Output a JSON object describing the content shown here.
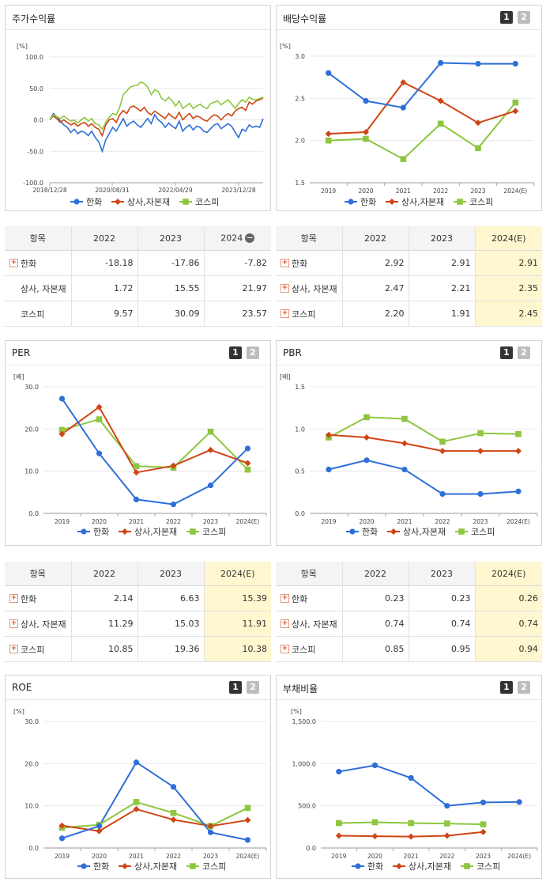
{
  "colors": {
    "hanwha": "#2e6fd8",
    "sangsa": "#cf4514",
    "kospi": "#8dc63f"
  },
  "legend": {
    "s1": "한화",
    "s2": "상사,자본재",
    "s3": "코스피"
  },
  "toggles": {
    "one": "1",
    "two": "2"
  },
  "chart_data": [
    {
      "id": "stock",
      "type": "line",
      "title": "주가수익률",
      "ylabel": "[%]",
      "ylim": [
        -100,
        100
      ],
      "yticks": [
        "100.0",
        "50.0",
        "0.0",
        "-50.0",
        "-100.0"
      ],
      "xticks": [
        "2018/12/28",
        "2020/08/31",
        "2022/04/29",
        "2023/12/28"
      ],
      "x": [
        0,
        1,
        2,
        3,
        4,
        5,
        6,
        7,
        8,
        9,
        10,
        11,
        12,
        13,
        14,
        15,
        16,
        17,
        18,
        19,
        20,
        21,
        22,
        23,
        24,
        25,
        26,
        27,
        28,
        29,
        30,
        31,
        32,
        33,
        34,
        35,
        36,
        37,
        38,
        39,
        40,
        41,
        42,
        43,
        44,
        45,
        46,
        47,
        48,
        49,
        50,
        51,
        52,
        53,
        54,
        55,
        56,
        57,
        58,
        59,
        60,
        61
      ],
      "series": [
        {
          "name": "한화",
          "key": "hanwha",
          "values": [
            0,
            10,
            5,
            -2,
            -8,
            -12,
            -20,
            -15,
            -22,
            -18,
            -20,
            -25,
            -18,
            -28,
            -35,
            -50,
            -32,
            -22,
            -12,
            -18,
            -8,
            2,
            -10,
            -5,
            -2,
            -8,
            -12,
            -5,
            2,
            -6,
            8,
            0,
            -4,
            -12,
            -5,
            -10,
            -14,
            -2,
            -18,
            -12,
            -8,
            -16,
            -10,
            -12,
            -18,
            -20,
            -14,
            -8,
            -6,
            -14,
            -10,
            -6,
            -10,
            -20,
            -28,
            -15,
            -18,
            -8,
            -12,
            -10,
            -12,
            2
          ]
        },
        {
          "name": "상사,자본재",
          "key": "sangsa",
          "values": [
            0,
            6,
            2,
            -4,
            0,
            -4,
            -8,
            -5,
            -10,
            -6,
            -4,
            -10,
            -6,
            -12,
            -15,
            -25,
            -8,
            0,
            2,
            -4,
            8,
            15,
            10,
            20,
            22,
            18,
            14,
            20,
            12,
            8,
            14,
            10,
            6,
            2,
            10,
            5,
            2,
            12,
            0,
            6,
            10,
            2,
            6,
            4,
            0,
            -2,
            4,
            8,
            6,
            0,
            6,
            10,
            6,
            14,
            18,
            20,
            15,
            28,
            25,
            30,
            32,
            35
          ]
        },
        {
          "name": "코스피",
          "key": "kospi",
          "values": [
            0,
            8,
            5,
            2,
            6,
            2,
            -2,
            0,
            -5,
            0,
            4,
            -2,
            2,
            -6,
            -8,
            -15,
            -4,
            4,
            10,
            8,
            20,
            40,
            46,
            52,
            54,
            55,
            60,
            58,
            52,
            40,
            48,
            45,
            34,
            30,
            36,
            30,
            22,
            30,
            18,
            22,
            26,
            18,
            22,
            25,
            20,
            18,
            26,
            28,
            30,
            24,
            28,
            32,
            25,
            18,
            26,
            32,
            28,
            36,
            33,
            32,
            34,
            36
          ]
        }
      ]
    },
    {
      "id": "dividend",
      "type": "line",
      "title": "배당수익률",
      "ylabel": "[%]",
      "ylim": [
        1.5,
        3.0
      ],
      "yticks": [
        "3.0",
        "2.5",
        "2.0",
        "1.5"
      ],
      "categories": [
        "2019",
        "2020",
        "2021",
        "2022",
        "2023",
        "2024(E)"
      ],
      "series": [
        {
          "name": "한화",
          "key": "hanwha",
          "values": [
            2.8,
            2.47,
            2.39,
            2.92,
            2.91,
            2.91
          ]
        },
        {
          "name": "상사,자본재",
          "key": "sangsa",
          "values": [
            2.08,
            2.1,
            2.69,
            2.47,
            2.21,
            2.35
          ]
        },
        {
          "name": "코스피",
          "key": "kospi",
          "values": [
            2.0,
            2.02,
            1.78,
            2.2,
            1.91,
            2.45
          ]
        }
      ]
    },
    {
      "id": "per",
      "type": "line",
      "title": "PER",
      "ylabel": "[배]",
      "ylim": [
        0,
        30
      ],
      "yticks": [
        "30.0",
        "20.0",
        "10.0",
        "0.0"
      ],
      "categories": [
        "2019",
        "2020",
        "2021",
        "2022",
        "2023",
        "2024(E)"
      ],
      "series": [
        {
          "name": "한화",
          "key": "hanwha",
          "values": [
            27.2,
            14.2,
            3.3,
            2.14,
            6.63,
            15.39
          ]
        },
        {
          "name": "상사,자본재",
          "key": "sangsa",
          "values": [
            18.8,
            25.2,
            9.7,
            11.29,
            15.03,
            11.91
          ]
        },
        {
          "name": "코스피",
          "key": "kospi",
          "values": [
            19.8,
            22.3,
            11.2,
            10.85,
            19.36,
            10.38
          ]
        }
      ]
    },
    {
      "id": "pbr",
      "type": "line",
      "title": "PBR",
      "ylabel": "[배]",
      "ylim": [
        0,
        1.5
      ],
      "yticks": [
        "1.5",
        "1.0",
        "0.5",
        "0.0"
      ],
      "categories": [
        "2019",
        "2020",
        "2021",
        "2022",
        "2023",
        "2024(E)"
      ],
      "series": [
        {
          "name": "한화",
          "key": "hanwha",
          "values": [
            0.52,
            0.63,
            0.52,
            0.23,
            0.23,
            0.26
          ]
        },
        {
          "name": "상사,자본재",
          "key": "sangsa",
          "values": [
            0.93,
            0.9,
            0.83,
            0.74,
            0.74,
            0.74
          ]
        },
        {
          "name": "코스피",
          "key": "kospi",
          "values": [
            0.9,
            1.14,
            1.12,
            0.85,
            0.95,
            0.94
          ]
        }
      ]
    },
    {
      "id": "roe",
      "type": "line",
      "title": "ROE",
      "ylabel": "[%]",
      "ylim": [
        0,
        30
      ],
      "yticks": [
        "30.0",
        "20.0",
        "10.0",
        "0.0"
      ],
      "categories": [
        "2019",
        "2020",
        "2021",
        "2022",
        "2023",
        "2024(E)"
      ],
      "series": [
        {
          "name": "한화",
          "key": "hanwha",
          "values": [
            2.3,
            5.2,
            20.3,
            14.5,
            3.7,
            1.9
          ]
        },
        {
          "name": "상사,자본재",
          "key": "sangsa",
          "values": [
            5.3,
            4.0,
            9.2,
            6.7,
            5.2,
            6.6
          ]
        },
        {
          "name": "코스피",
          "key": "kospi",
          "values": [
            4.8,
            5.5,
            10.9,
            8.3,
            5.2,
            9.5
          ]
        }
      ]
    },
    {
      "id": "debt",
      "type": "line",
      "title": "부채비율",
      "ylabel": "[%]",
      "ylim": [
        0,
        1500
      ],
      "yticks": [
        "1,500.0",
        "1,000.0",
        "500.0",
        "0.0"
      ],
      "categories": [
        "2019",
        "2020",
        "2021",
        "2022",
        "2023",
        "2024(E)"
      ],
      "series": [
        {
          "name": "한화",
          "key": "hanwha",
          "values": [
            905,
            980,
            830,
            500,
            540,
            545
          ]
        },
        {
          "name": "상사,자본재",
          "key": "sangsa",
          "values": [
            145,
            140,
            135,
            145,
            190,
            null
          ]
        },
        {
          "name": "코스피",
          "key": "kospi",
          "values": [
            295,
            305,
            295,
            290,
            280,
            null
          ]
        }
      ]
    }
  ],
  "tables": {
    "stock": {
      "header": [
        "항목",
        "2022",
        "2023",
        "2024"
      ],
      "rows": [
        [
          "한화",
          "-18.18",
          "-17.86",
          "-7.82"
        ],
        [
          "상사, 자본재",
          "1.72",
          "15.55",
          "21.97"
        ],
        [
          "코스피",
          "9.57",
          "30.09",
          "23.57"
        ]
      ]
    },
    "dividend": {
      "header": [
        "항목",
        "2022",
        "2023",
        "2024(E)"
      ],
      "rows": [
        [
          "한화",
          "2.92",
          "2.91",
          "2.91"
        ],
        [
          "상사, 자본재",
          "2.47",
          "2.21",
          "2.35"
        ],
        [
          "코스피",
          "2.20",
          "1.91",
          "2.45"
        ]
      ]
    },
    "per": {
      "header": [
        "항목",
        "2022",
        "2023",
        "2024(E)"
      ],
      "rows": [
        [
          "한화",
          "2.14",
          "6.63",
          "15.39"
        ],
        [
          "상사, 자본재",
          "11.29",
          "15.03",
          "11.91"
        ],
        [
          "코스피",
          "10.85",
          "19.36",
          "10.38"
        ]
      ]
    },
    "pbr": {
      "header": [
        "항목",
        "2022",
        "2023",
        "2024(E)"
      ],
      "rows": [
        [
          "한화",
          "0.23",
          "0.23",
          "0.26"
        ],
        [
          "상사, 자본재",
          "0.74",
          "0.74",
          "0.74"
        ],
        [
          "코스피",
          "0.85",
          "0.95",
          "0.94"
        ]
      ]
    }
  }
}
